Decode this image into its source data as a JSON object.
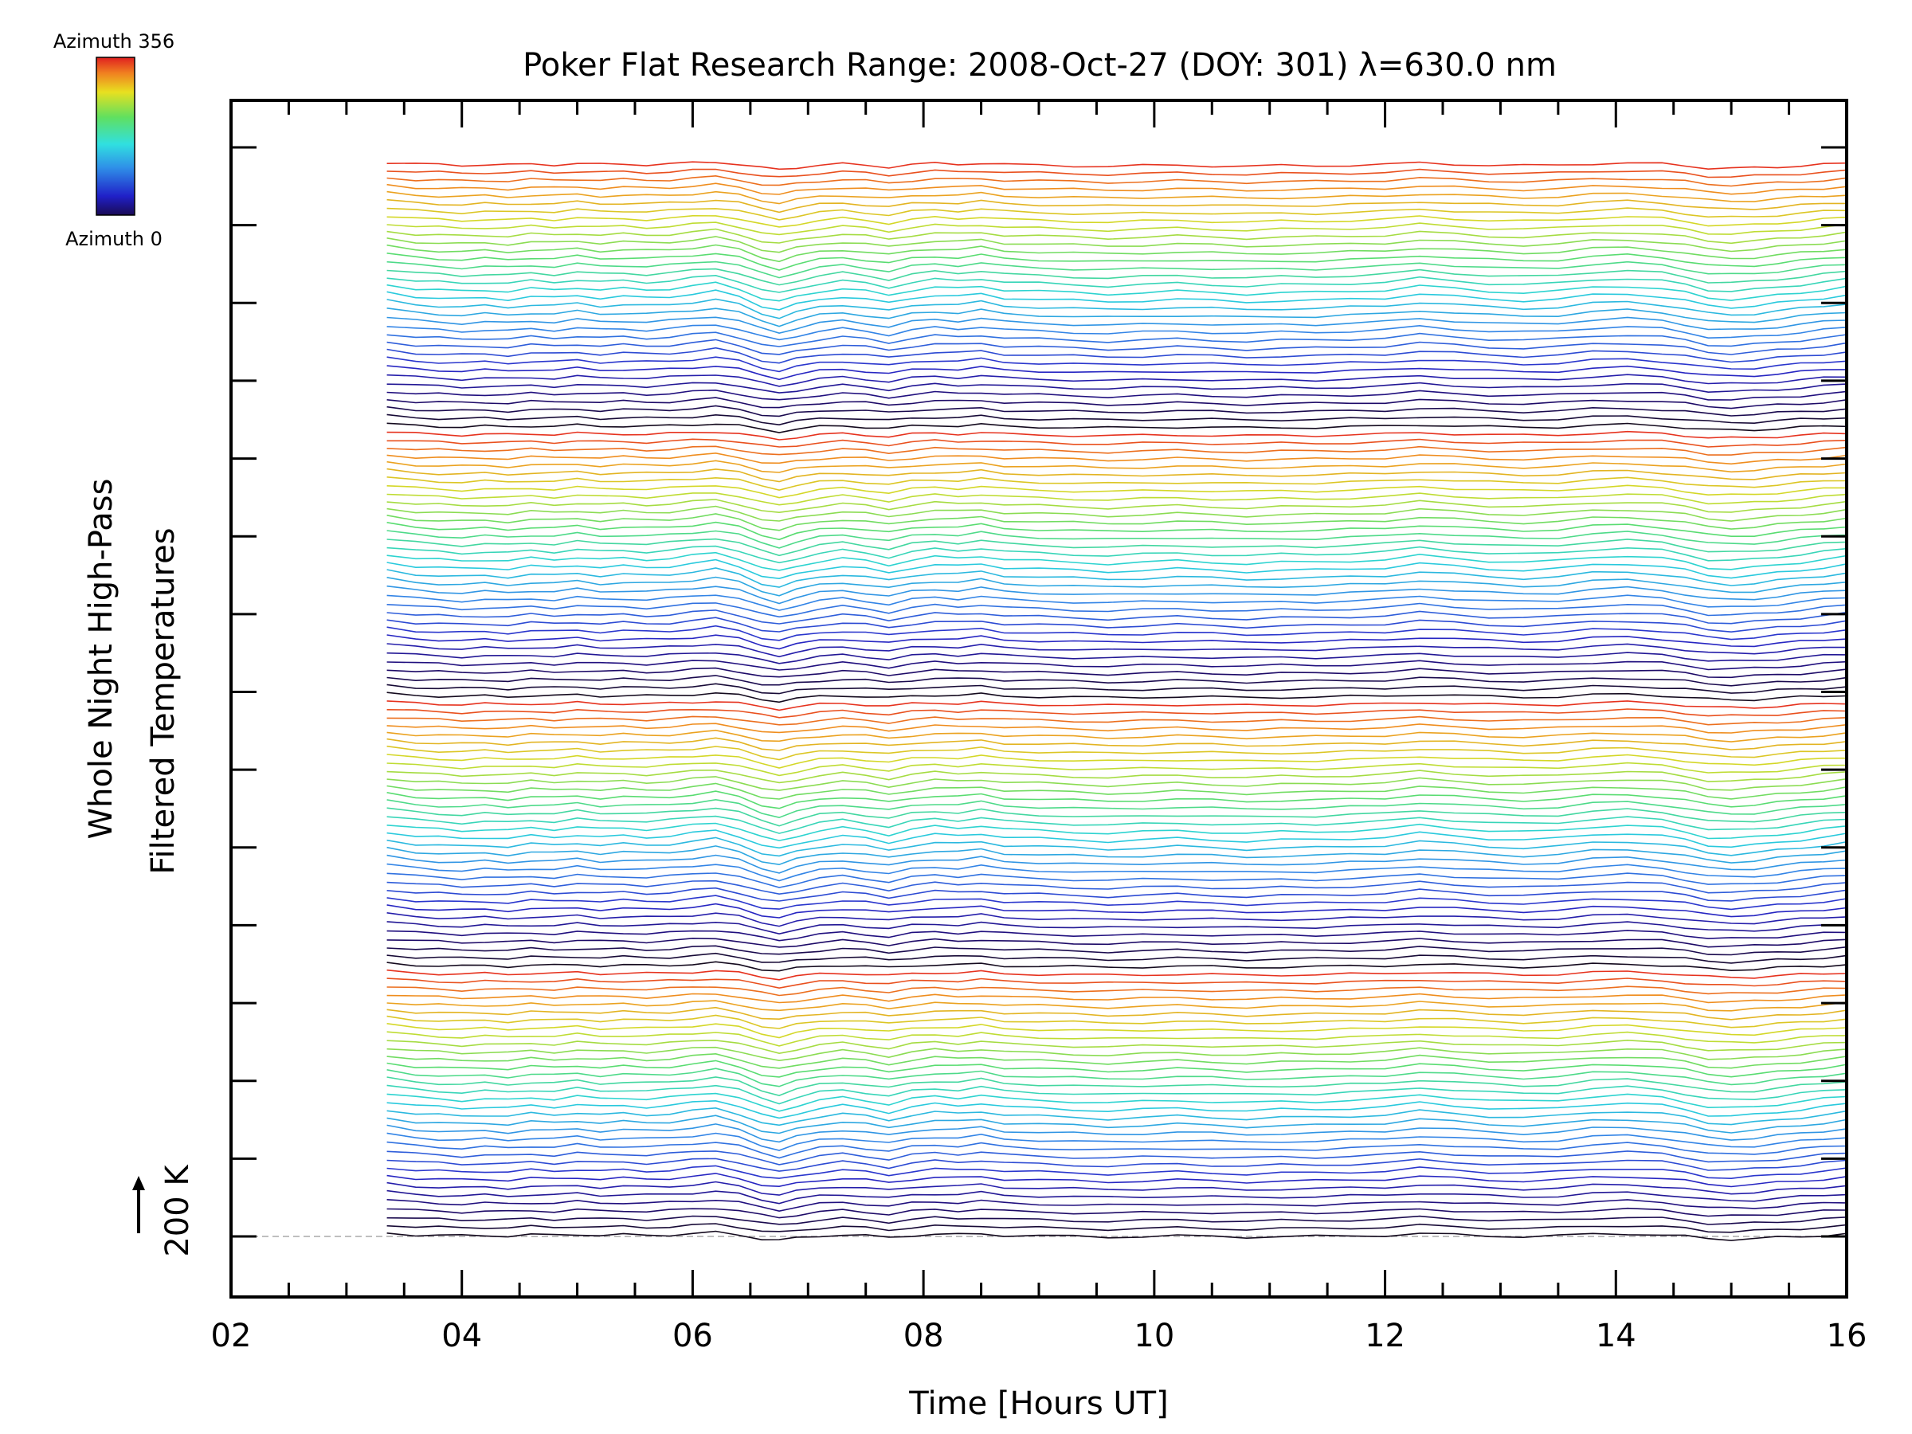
{
  "chart_data": {
    "type": "line",
    "title": "Poker Flat Research Range: 2008-Oct-27 (DOY: 301) λ=630.0 nm",
    "xlabel": "Time [Hours UT]",
    "ylabel_line1": "Whole Night High-Pass",
    "ylabel_line2": "Filtered Temperatures",
    "scale_label": "200 K",
    "x_tick_labels": [
      "02",
      "04",
      "06",
      "08",
      "10",
      "12",
      "14",
      "16"
    ],
    "xlim": [
      2,
      16
    ],
    "colorbar": {
      "top_label": "Azimuth 356",
      "bottom_label": "Azimuth 0"
    },
    "data_start_hour": 3.35,
    "data_end_hour": 16.0,
    "series_count": 136,
    "series_color_scale": "rainbow by azimuth (0 = black/violet, 356 = red)",
    "profile": {
      "hours": [
        3.35,
        3.6,
        3.8,
        4.0,
        4.2,
        4.4,
        4.6,
        4.8,
        5.0,
        5.2,
        5.4,
        5.6,
        5.8,
        6.0,
        6.2,
        6.4,
        6.6,
        6.75,
        6.9,
        7.1,
        7.3,
        7.5,
        7.7,
        7.9,
        8.1,
        8.3,
        8.5,
        8.7,
        9.0,
        9.3,
        9.6,
        9.9,
        10.2,
        10.5,
        10.8,
        11.1,
        11.4,
        11.7,
        12.0,
        12.3,
        12.6,
        12.9,
        13.2,
        13.5,
        13.8,
        14.1,
        14.4,
        14.6,
        14.8,
        15.0,
        15.2,
        15.4,
        15.6,
        15.8,
        16.0
      ],
      "relative_temperature": [
        0.6,
        0.3,
        0.2,
        0.1,
        0.2,
        0.1,
        0.3,
        0.2,
        0.4,
        0.2,
        0.3,
        0.2,
        0.3,
        0.5,
        0.7,
        0.3,
        -0.4,
        -0.7,
        -0.3,
        0.1,
        0.3,
        0.1,
        -0.2,
        0.2,
        0.4,
        0.3,
        0.5,
        0.2,
        0.1,
        0.0,
        -0.1,
        0.0,
        0.1,
        0.0,
        -0.1,
        0.0,
        0.0,
        0.1,
        0.2,
        0.5,
        0.3,
        0.1,
        0.0,
        0.1,
        0.4,
        0.5,
        0.3,
        0.0,
        -0.4,
        -0.5,
        -0.4,
        -0.2,
        0.0,
        0.2,
        0.4
      ]
    }
  }
}
